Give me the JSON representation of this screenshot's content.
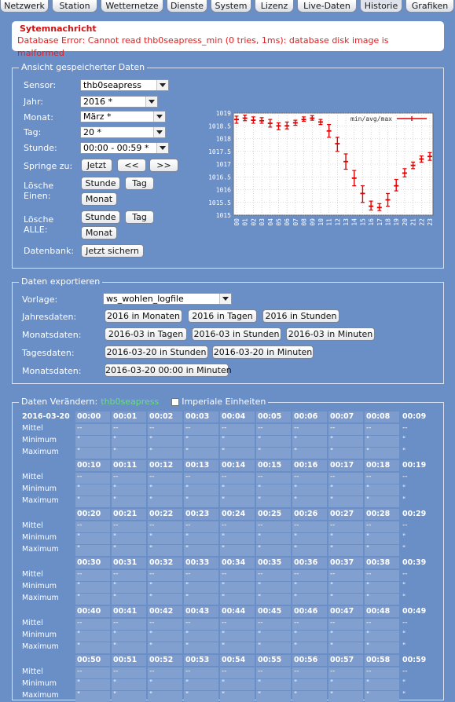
{
  "tabs": [
    "Netzwerk",
    "Station",
    "Wetternetze",
    "Dienste",
    "System",
    "Lizenz",
    "Live-Daten",
    "Historie",
    "Grafiken"
  ],
  "message": {
    "title": "Sytemnachricht",
    "error": "Database Error: Cannot read thb0seapress_min (0 tries, 1ms): database disk image is malformed"
  },
  "view": {
    "legend": "Ansicht gespeicherter Daten",
    "sensor_label": "Sensor:",
    "sensor_value": "thb0seapress",
    "year_label": "Jahr:",
    "year_value": "2016 *",
    "month_label": "Monat:",
    "month_value": "März *",
    "day_label": "Tag:",
    "day_value": "20 *",
    "hour_label": "Stunde:",
    "hour_value": "00:00 - 00:59 *",
    "jump_label": "Springe zu:",
    "jump_now": "Jetzt",
    "jump_prev": "<<",
    "jump_next": ">>",
    "delete_one_label": "Lösche Einen:",
    "delete_all_label": "Lösche ALLE:",
    "btn_hour": "Stunde",
    "btn_day": "Tag",
    "btn_month": "Monat",
    "db_label": "Datenbank:",
    "db_button": "Jetzt sichern"
  },
  "chart_data": {
    "type": "line",
    "legend": "min/avg/max",
    "x": [
      "00",
      "01",
      "02",
      "03",
      "04",
      "05",
      "06",
      "07",
      "08",
      "09",
      "10",
      "11",
      "12",
      "13",
      "14",
      "15",
      "16",
      "17",
      "18",
      "19",
      "20",
      "21",
      "22",
      "23"
    ],
    "avg": [
      1018.75,
      1018.8,
      1018.72,
      1018.7,
      1018.6,
      1018.5,
      1018.5,
      1018.62,
      1018.75,
      1018.8,
      1018.65,
      1018.3,
      1017.8,
      1017.1,
      1016.45,
      1015.85,
      1015.35,
      1015.3,
      1015.6,
      1016.15,
      1016.65,
      1016.95,
      1017.2,
      1017.3
    ],
    "min": [
      1018.6,
      1018.7,
      1018.6,
      1018.6,
      1018.45,
      1018.35,
      1018.38,
      1018.52,
      1018.68,
      1018.72,
      1018.55,
      1018.05,
      1017.5,
      1016.8,
      1016.15,
      1015.5,
      1015.2,
      1015.18,
      1015.35,
      1015.95,
      1016.5,
      1016.82,
      1017.08,
      1017.15
    ],
    "max": [
      1018.88,
      1018.92,
      1018.85,
      1018.82,
      1018.75,
      1018.62,
      1018.65,
      1018.72,
      1018.85,
      1018.9,
      1018.75,
      1018.55,
      1018.05,
      1017.4,
      1016.75,
      1016.15,
      1015.55,
      1015.45,
      1015.85,
      1016.4,
      1016.82,
      1017.08,
      1017.32,
      1017.45
    ],
    "ylim": [
      1015,
      1019
    ],
    "yticks": [
      "1019",
      "1018.5",
      "1018",
      "1017.5",
      "1017",
      "1016.5",
      "1016",
      "1015.5",
      "1015"
    ],
    "grid": true,
    "legend_position": "top-right",
    "color": "#e00000"
  },
  "export": {
    "legend": "Daten exportieren",
    "template_label": "Vorlage:",
    "template_value": "ws_wohlen_logfile",
    "year_label": "Jahresdaten:",
    "year_buttons": [
      "2016 in Monaten",
      "2016 in Tagen",
      "2016 in Stunden"
    ],
    "month_label": "Monatsdaten:",
    "month_buttons": [
      "2016-03 in Tagen",
      "2016-03 in Stunden",
      "2016-03 in Minuten"
    ],
    "day_label": "Tagesdaten:",
    "day_buttons": [
      "2016-03-20 in Stunden",
      "2016-03-20 in Minuten"
    ],
    "month2_label": "Monatsdaten:",
    "month2_buttons": [
      "2016-03-20 00:00 in Minuten"
    ]
  },
  "modify": {
    "legend": "Daten Verändern:",
    "sensor": "thb0seapress",
    "imperial_label": "Imperiale Einheiten",
    "date": "2016-03-20",
    "row_labels": [
      "Mittel",
      "Minimum",
      "Maximum"
    ],
    "minutes": [
      "00:00",
      "00:01",
      "00:02",
      "00:03",
      "00:04",
      "00:05",
      "00:06",
      "00:07",
      "00:08",
      "00:09",
      "00:10",
      "00:11",
      "00:12",
      "00:13",
      "00:14",
      "00:15",
      "00:16",
      "00:17",
      "00:18",
      "00:19",
      "00:20",
      "00:21",
      "00:22",
      "00:23",
      "00:24",
      "00:25",
      "00:26",
      "00:27",
      "00:28",
      "00:29",
      "00:30",
      "00:31",
      "00:32",
      "00:33",
      "00:34",
      "00:35",
      "00:36",
      "00:37",
      "00:38",
      "00:39",
      "00:40",
      "00:41",
      "00:42",
      "00:43",
      "00:44",
      "00:45",
      "00:46",
      "00:47",
      "00:48",
      "00:49",
      "00:50",
      "00:51",
      "00:52",
      "00:53",
      "00:54",
      "00:55",
      "00:56",
      "00:57",
      "00:58",
      "00:59"
    ],
    "mean_value": "--",
    "minmax_value": "\""
  }
}
